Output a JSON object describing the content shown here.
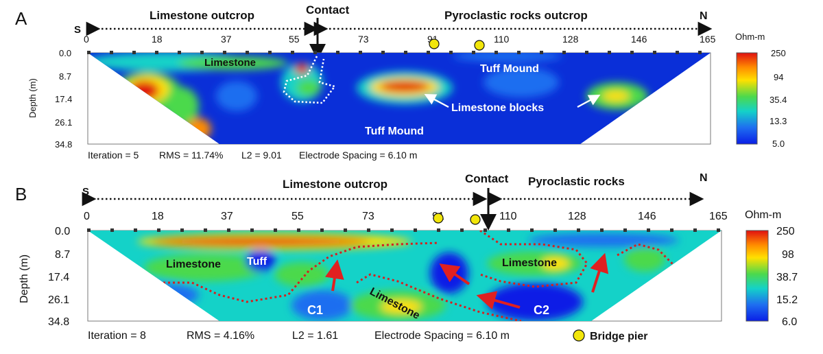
{
  "panels": [
    {
      "letter": "A",
      "south": "S",
      "north": "N",
      "left_label": "Limestone outcrop",
      "right_label": "Pyroclastic rocks outcrop",
      "contact": "Contact",
      "x_ticks": [
        "0",
        "18",
        "37",
        "55",
        "73",
        "91",
        "110",
        "128",
        "146",
        "165"
      ],
      "y_ticks": [
        "0.0",
        "8.7",
        "17.4",
        "26.1",
        "34.8"
      ],
      "y_label": "Depth (m)",
      "colorbar_title": "Ohm-m",
      "colorbar_ticks": [
        "250",
        "94",
        "35.4",
        "13.3",
        "5.0"
      ],
      "annotations": {
        "limestone": "Limestone",
        "tuff_mound_top": "Tuff Mound",
        "limestone_blocks": "Limestone blocks",
        "tuff_mound_bottom": "Tuff Mound"
      },
      "stats": {
        "iteration": "Iteration = 5",
        "rms": "RMS = 11.74%",
        "l2": "L2 = 9.01",
        "spacing": "Electrode Spacing = 6.10 m"
      }
    },
    {
      "letter": "B",
      "south": "S",
      "north": "N",
      "left_label": "Limestone outcrop",
      "right_label": "Pyroclastic rocks",
      "contact": "Contact",
      "x_ticks": [
        "0",
        "18",
        "37",
        "55",
        "73",
        "91",
        "110",
        "128",
        "146",
        "165"
      ],
      "y_ticks": [
        "0.0",
        "8.7",
        "17.4",
        "26.1",
        "34.8"
      ],
      "y_label": "Depth (m)",
      "colorbar_title": "Ohm-m",
      "colorbar_ticks": [
        "250",
        "98",
        "38.7",
        "15.2",
        "6.0"
      ],
      "annotations": {
        "limestone_left": "Limestone",
        "tuff": "Tuff",
        "limestone_right": "Limestone",
        "limestone_bottom": "Limestone",
        "c1": "C1",
        "c2": "C2"
      },
      "stats": {
        "iteration": "Iteration = 8",
        "rms": "RMS = 4.16%",
        "l2": "L2 = 1.61",
        "spacing": "Electrode Spacing = 6.10 m"
      },
      "legend": {
        "bridge_pier": "Bridge pier"
      }
    }
  ],
  "colors": {
    "background_resistivity": "#0a2fd8",
    "colorbar": [
      "#e01010",
      "#ff8c00",
      "#ffe000",
      "#4cd94c",
      "#14d2c8",
      "#1e6ef0",
      "#0a1ee6"
    ],
    "boundary_dots": "#d42020",
    "arrows": "#e02020",
    "pier": "#f2e60a"
  }
}
